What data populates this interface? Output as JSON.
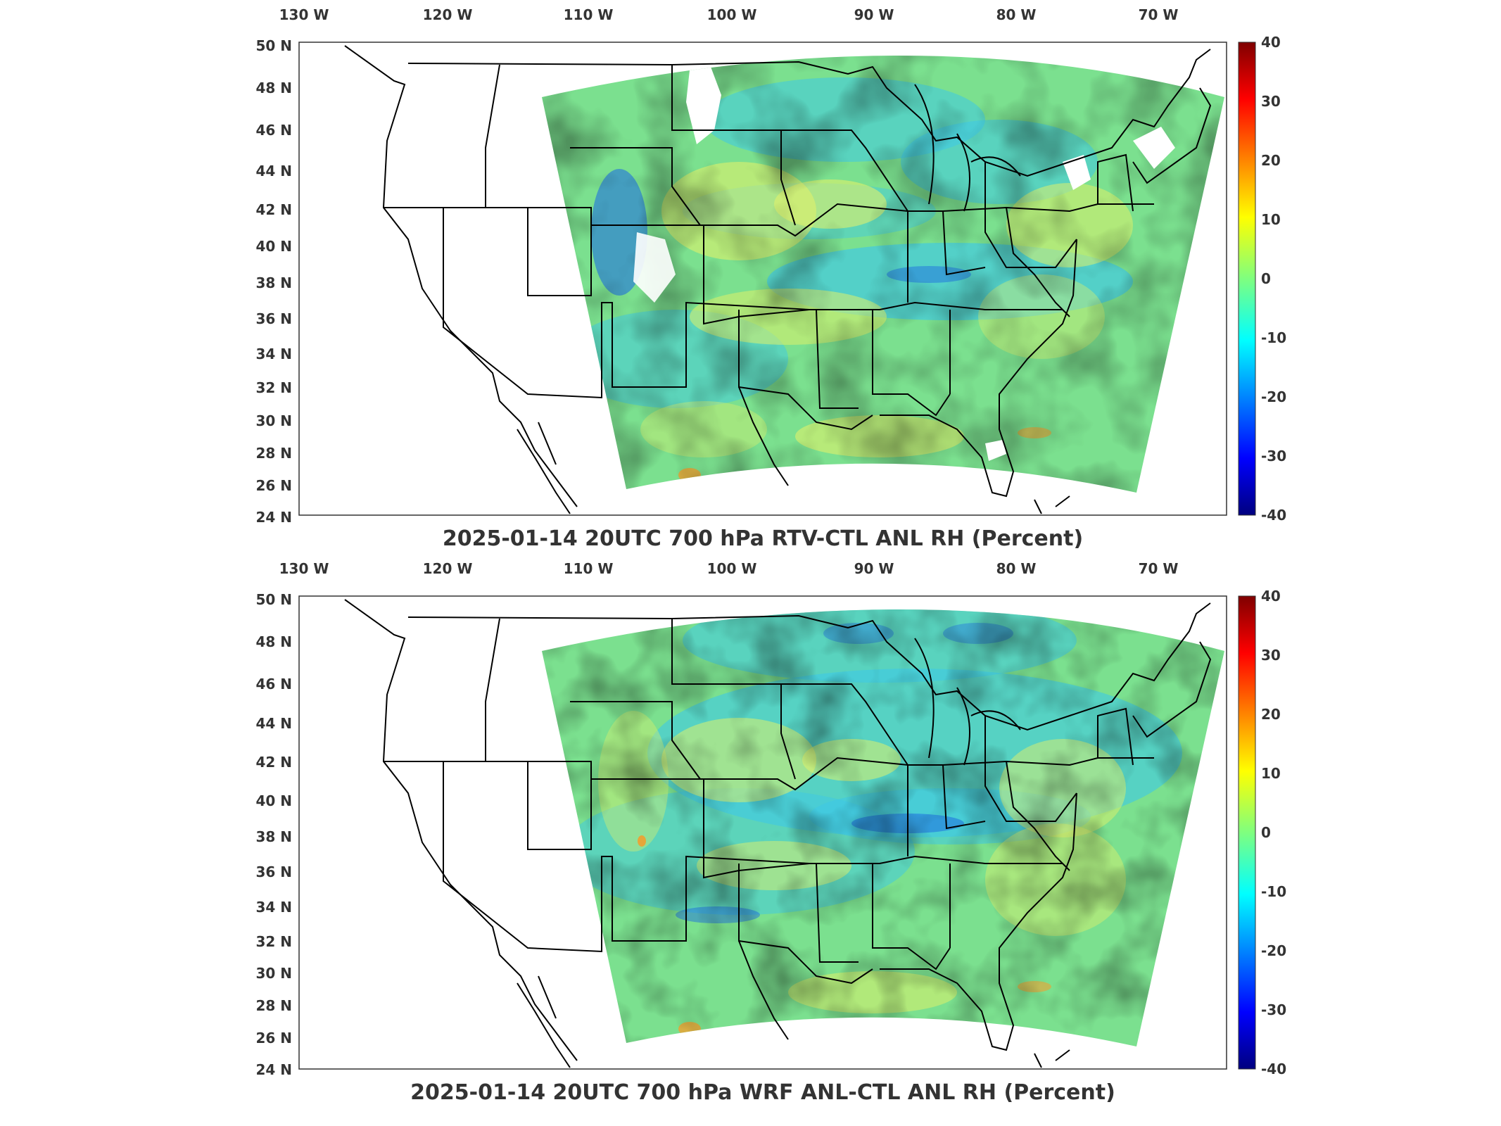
{
  "colors": {
    "field_base": "#7be08f",
    "field_cool": "#3ec8e6",
    "field_warm": "#dff06a",
    "field_dry": "#1f6fe0",
    "field_wet": "#f0a030",
    "border": "#000000",
    "axis": "#333333"
  },
  "colorbar": {
    "min": -40,
    "max": 40,
    "ticks": [
      "40",
      "30",
      "20",
      "10",
      "0",
      "-10",
      "-20",
      "-30",
      "-40"
    ],
    "colormap": "jet"
  },
  "axes": {
    "longitude_ticks": [
      "130 W",
      "120 W",
      "110 W",
      "100 W",
      "90 W",
      "80 W",
      "70 W"
    ],
    "latitude_ticks": [
      "50 N",
      "48 N",
      "46 N",
      "44 N",
      "42 N",
      "40 N",
      "38 N",
      "36 N",
      "34 N",
      "32 N",
      "30 N",
      "28 N",
      "26 N",
      "24 N"
    ],
    "lon_range": [
      -130,
      -63
    ],
    "lat_range": [
      24,
      50
    ]
  },
  "maps": [
    {
      "id": "rtv",
      "title": "2025-01-14 20UTC 700 hPa RTV-CTL ANL RH (Percent)",
      "variable": "RH difference",
      "units": "Percent",
      "level": "700 hPa"
    },
    {
      "id": "wrf",
      "title": "2025-01-14 20UTC 700 hPa WRF ANL-CTL ANL RH (Percent)",
      "variable": "RH difference",
      "units": "Percent",
      "level": "700 hPa"
    }
  ]
}
